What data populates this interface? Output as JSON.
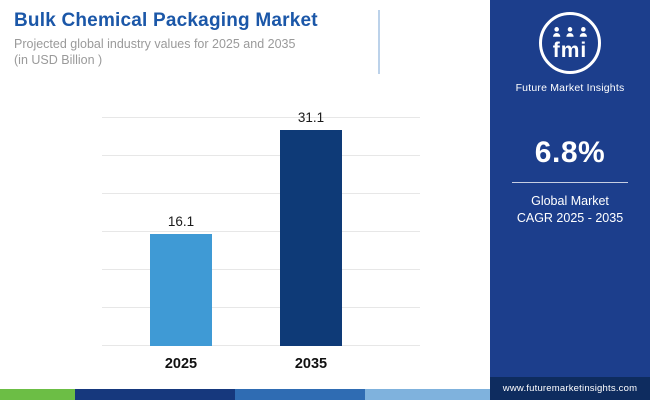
{
  "header": {
    "title": "Bulk Chemical Packaging Market",
    "subtitle_line1": "Projected global industry values for 2025 and 2035",
    "subtitle_line2": "(in USD Billion )"
  },
  "chart_data": {
    "type": "bar",
    "categories": [
      "2025",
      "2035"
    ],
    "values": [
      16.1,
      31.1
    ],
    "value_labels": [
      "16.1",
      "31.1"
    ],
    "title": "Bulk Chemical Packaging Market",
    "xlabel": "",
    "ylabel": "",
    "ylim": [
      0,
      33
    ],
    "grid": true,
    "legend": false,
    "bar_colors": [
      "#3f9ad5",
      "#0e3a77"
    ]
  },
  "sidebar": {
    "logo_text": "fmi",
    "brand_name": "Future Market Insights",
    "cagr_value": "6.8%",
    "cagr_label_line1": "Global Market",
    "cagr_label_line2": "CAGR 2025 - 2035",
    "website": "www.futuremarketinsights.com",
    "panel_background": "#1c3e8c",
    "website_bar_background": "#0e2c5f"
  },
  "accent_colors": {
    "title_blue": "#1b57a8",
    "green": "#6cbe45",
    "navy": "#16387d",
    "medium_blue": "#2f6cb3",
    "light_blue": "#7fb2dd"
  }
}
